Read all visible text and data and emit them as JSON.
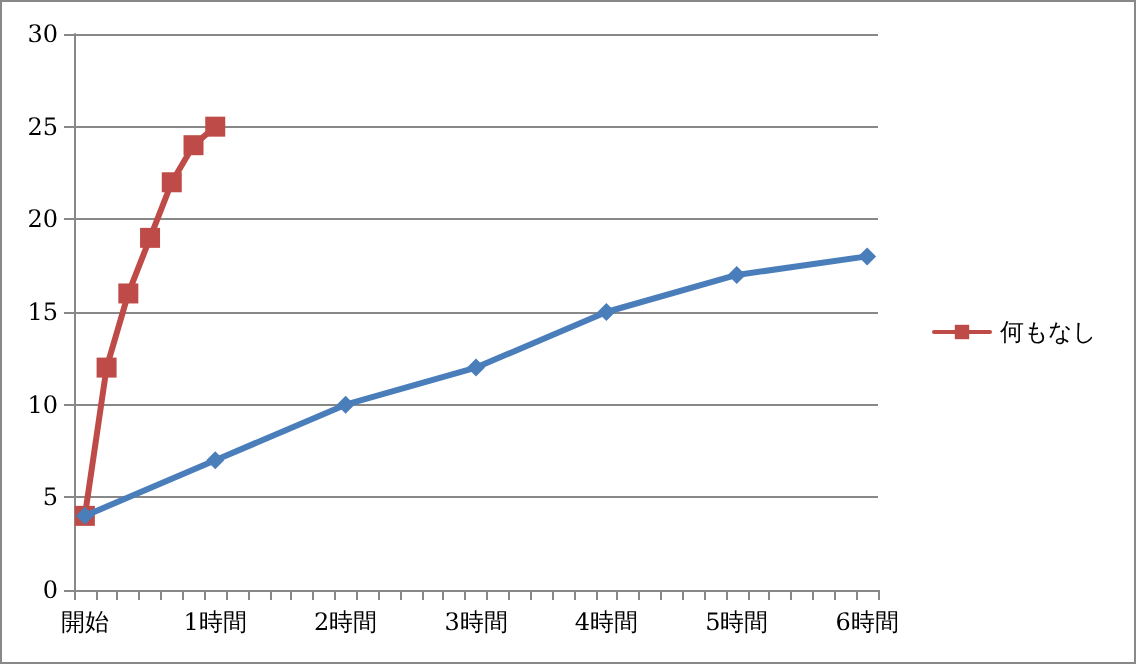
{
  "chart_data": {
    "type": "line",
    "categories": [
      "開始",
      null,
      null,
      null,
      null,
      null,
      "1時間",
      null,
      null,
      null,
      null,
      null,
      "2時間",
      null,
      null,
      null,
      null,
      null,
      "3時間",
      null,
      null,
      null,
      null,
      null,
      "4時間",
      null,
      null,
      null,
      null,
      null,
      "5時間",
      null,
      null,
      null,
      null,
      null,
      "6時間"
    ],
    "series": [
      {
        "color": "#4a7ebb",
        "marker": "diamond",
        "values": [
          4,
          null,
          null,
          null,
          null,
          null,
          7,
          null,
          null,
          null,
          null,
          null,
          10,
          null,
          null,
          null,
          null,
          null,
          12,
          null,
          null,
          null,
          null,
          null,
          15,
          null,
          null,
          null,
          null,
          null,
          17,
          null,
          null,
          null,
          null,
          null,
          18
        ]
      },
      {
        "name": "何もなし",
        "color": "#be4b48",
        "marker": "square",
        "values": [
          4,
          12,
          16,
          19,
          22,
          24,
          25,
          null,
          null,
          null,
          null,
          null,
          null,
          null,
          null,
          null,
          null,
          null,
          null,
          null,
          null,
          null,
          null,
          null,
          null,
          null,
          null,
          null,
          null,
          null,
          null,
          null,
          null,
          null,
          null,
          null,
          null
        ]
      }
    ],
    "ylim": [
      0,
      30
    ],
    "yticks": [
      0,
      5,
      10,
      15,
      20,
      25,
      30
    ],
    "grid": "y",
    "legend": "right",
    "line_style": "solid"
  }
}
